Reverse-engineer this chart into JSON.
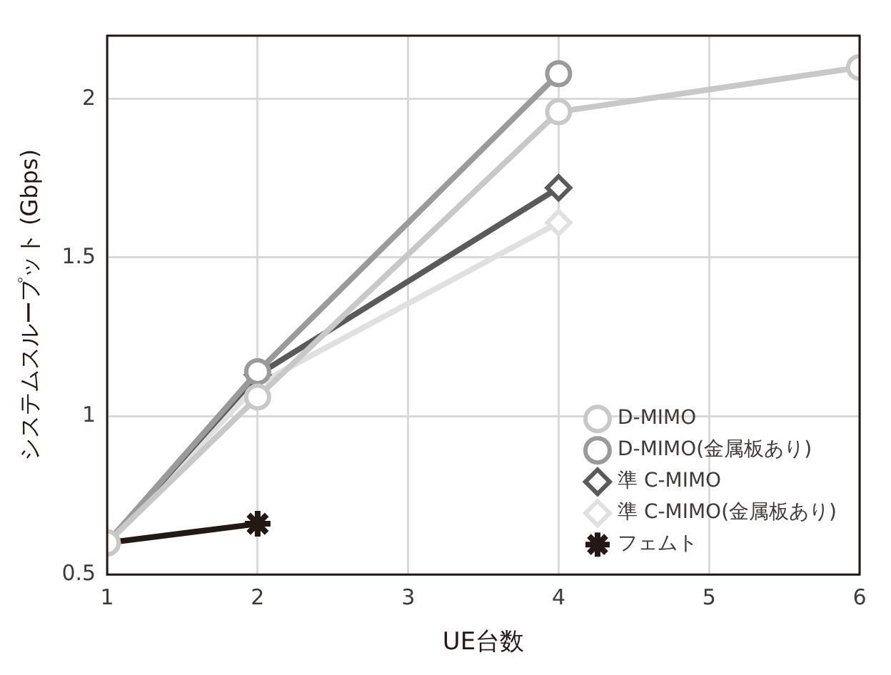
{
  "chart_data": {
    "type": "line",
    "xlabel": "UE台数",
    "ylabel": "システムスループット (Gbps)",
    "xlim": [
      1,
      6
    ],
    "xticks": [
      1,
      2,
      3,
      4,
      5,
      6
    ],
    "ylim": [
      0.5,
      2.2
    ],
    "yticks": [
      0.5,
      1,
      1.5,
      2
    ],
    "grid": true,
    "legend": "bottom right",
    "line_style": "solid",
    "series": [
      {
        "name": "D-MIMO",
        "color": "#c8c8c8",
        "marker": "circle",
        "x": [
          1,
          2,
          4,
          6
        ],
        "values": [
          0.6,
          1.06,
          1.96,
          2.1
        ]
      },
      {
        "name": "D-MIMO(金属板あり)",
        "color": "#9a9a9a",
        "marker": "circle",
        "x": [
          1,
          2,
          4
        ],
        "values": [
          0.6,
          1.14,
          2.08
        ]
      },
      {
        "name": "準 C-MIMO",
        "color": "#5a5a5a",
        "marker": "diamond",
        "x": [
          1,
          2,
          4
        ],
        "values": [
          0.6,
          1.13,
          1.72
        ]
      },
      {
        "name": "準 C-MIMO(金属板あり)",
        "color": "#e0e0e0",
        "marker": "diamond",
        "x": [
          1,
          2,
          4
        ],
        "values": [
          0.6,
          1.1,
          1.61
        ]
      },
      {
        "name": "フェムト",
        "color": "#231815",
        "marker": "cross",
        "x": [
          1,
          2
        ],
        "values": [
          0.6,
          0.66
        ]
      }
    ]
  }
}
